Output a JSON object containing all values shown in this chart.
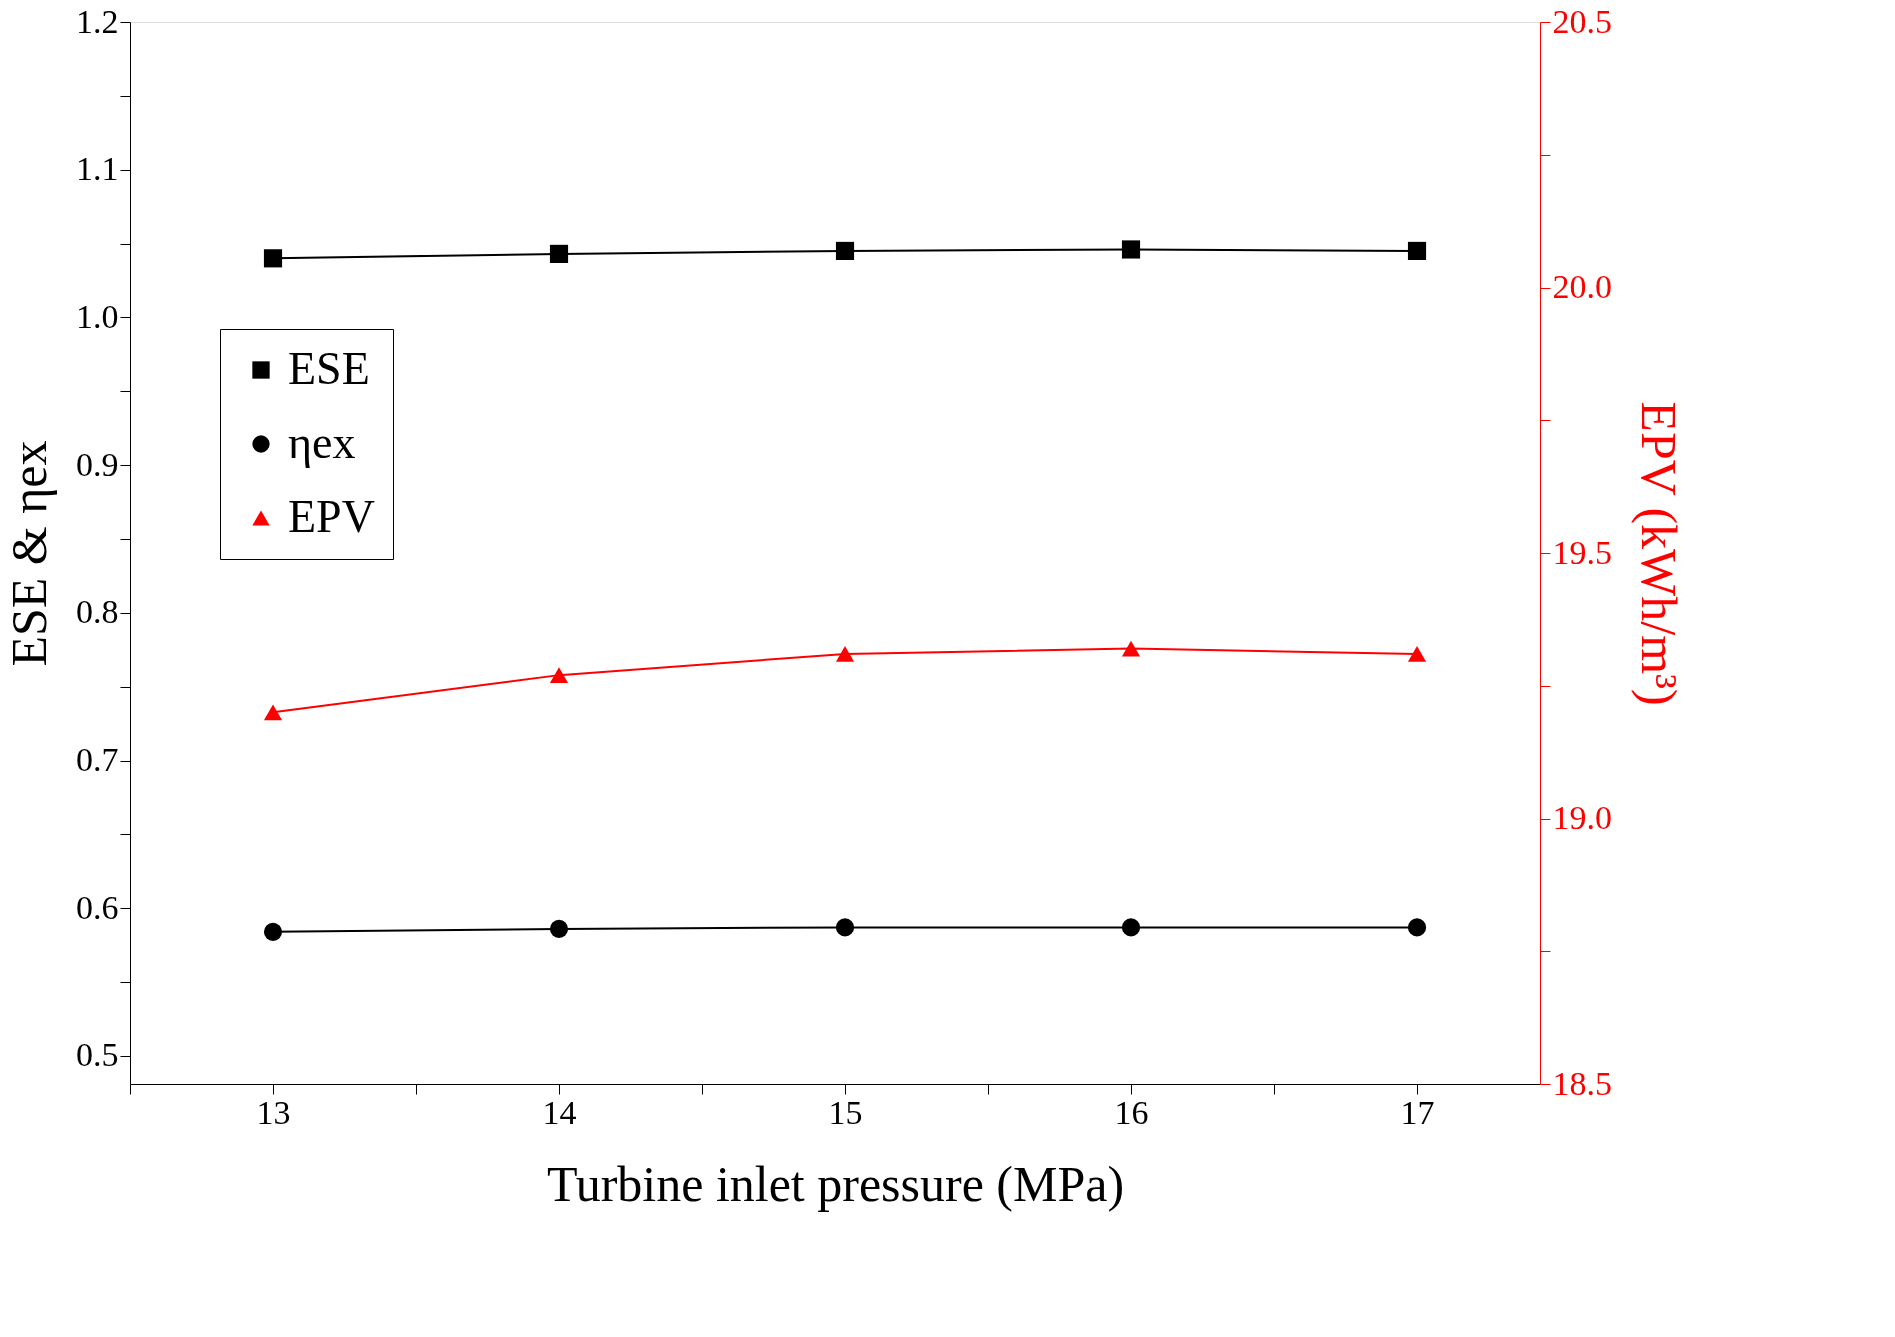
{
  "chart_data": {
    "type": "line",
    "xlabel": "Turbine inlet pressure (MPa)",
    "ylabel": "ESE & ηex",
    "y2label": "EPV (kWh/m³)",
    "x": [
      13,
      14,
      15,
      16,
      17
    ],
    "series": [
      {
        "name": "ESE",
        "color": "#000000",
        "marker": "square",
        "values": [
          1.04,
          1.043,
          1.045,
          1.046,
          1.045
        ]
      },
      {
        "name": "ηex",
        "color": "#000000",
        "marker": "circle",
        "values": [
          0.584,
          0.586,
          0.587,
          0.587,
          0.587
        ]
      },
      {
        "name": "EPV",
        "color": "#ff0000",
        "marker": "triangle",
        "axis": "y2",
        "values": [
          19.2,
          19.27,
          19.31,
          19.32,
          19.31
        ]
      }
    ],
    "xlim": [
      12.5,
      17.43
    ],
    "ylim": [
      0.481,
      1.2
    ],
    "y2lim": [
      18.5,
      20.5
    ],
    "xticks": [
      {
        "value": 12.5,
        "label": null
      },
      13,
      {
        "value": 13.5,
        "label": null
      },
      14,
      {
        "value": 14.5,
        "label": null
      },
      15,
      {
        "value": 15.5,
        "label": null
      },
      16,
      {
        "value": 16.5,
        "label": null
      },
      17
    ],
    "yticks": [
      0.5,
      {
        "value": 0.55,
        "label": null
      },
      0.6,
      {
        "value": 0.65,
        "label": null
      },
      0.7,
      {
        "value": 0.75,
        "label": null
      },
      0.8,
      {
        "value": 0.85,
        "label": null
      },
      0.9,
      {
        "value": 0.95,
        "label": null
      },
      {
        "value": 1,
        "label": "1.0"
      },
      {
        "value": 1.05,
        "label": null
      },
      1.1,
      {
        "value": 1.15,
        "label": null
      },
      1.2
    ],
    "y2ticks": [
      18.5,
      {
        "value": 18.75,
        "label": null
      },
      {
        "value": 19,
        "label": "19.0"
      },
      {
        "value": 19.25,
        "label": null
      },
      19.5,
      {
        "value": 19.75,
        "label": null
      },
      {
        "value": 20,
        "label": "20.0"
      },
      {
        "value": 20.25,
        "label": null
      },
      20.5
    ],
    "legend": "top left",
    "grid": false,
    "line_style": "solid"
  }
}
